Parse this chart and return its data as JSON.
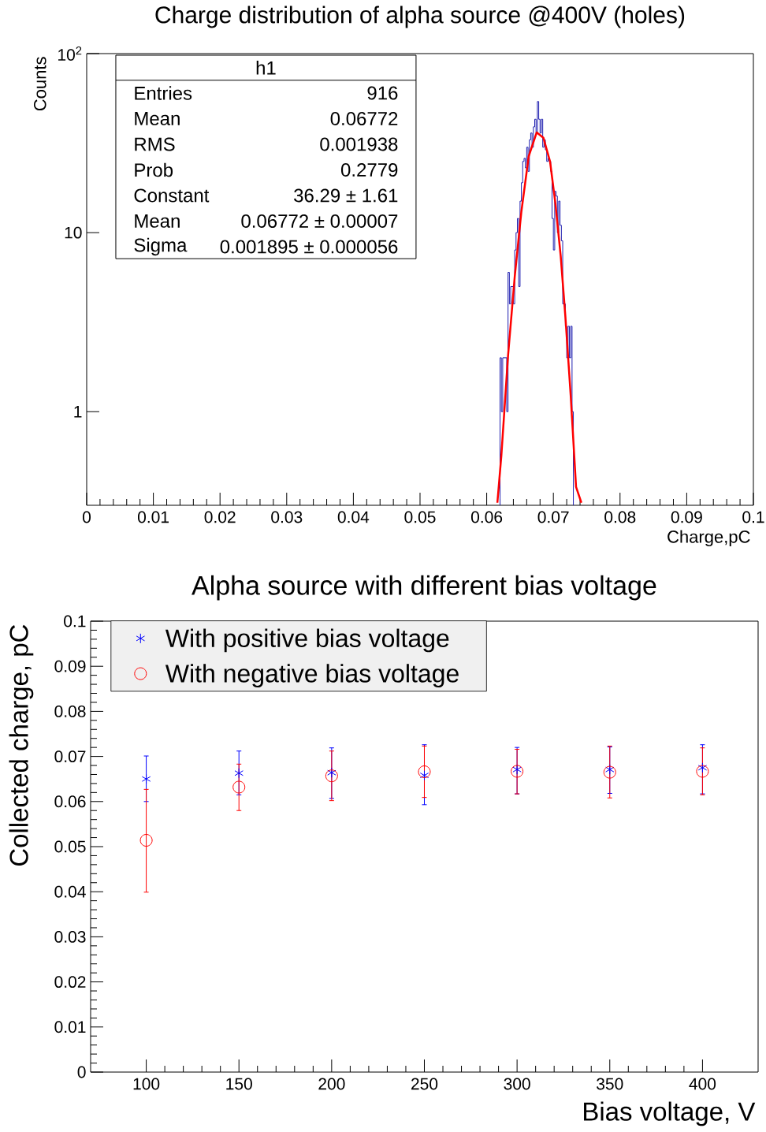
{
  "chart_data": [
    {
      "type": "histogram",
      "title": "Charge distribution of alpha source @400V (holes)",
      "xlabel": "Charge,pC",
      "ylabel": "Counts",
      "log": "y",
      "xlim": [
        0,
        0.1
      ],
      "ylim": [
        0.3,
        100
      ],
      "xticks": [
        0,
        0.01,
        0.02,
        0.03,
        0.04,
        0.05,
        0.06,
        0.07,
        0.08,
        0.09,
        0.1
      ],
      "yticks": [
        1,
        10,
        {
          "value": 100,
          "label": "10$^{2}$"
        }
      ],
      "annotations": [
        "h1",
        "Entries",
        "916",
        "Mean",
        "0.06772",
        "RMS",
        "0.001938",
        "Prob",
        "0.2779",
        "Constant",
        "36.29 ± 1.61",
        "Mean",
        "0.06772 ± 0.00007",
        "Sigma",
        "0.001895 ± 0.000056"
      ],
      "series": [
        {
          "type": "histogram",
          "color": "#1f1fb0",
          "bins": [
            0.062,
            0.0622,
            0.0624,
            0.0626,
            0.0628,
            0.063,
            0.0632,
            0.0634,
            0.0636,
            0.0638,
            0.064,
            0.0642,
            0.0644,
            0.0646,
            0.0648,
            0.065,
            0.0652,
            0.0654,
            0.0656,
            0.0658,
            0.066,
            0.0662,
            0.0664,
            0.0666,
            0.0668,
            0.067,
            0.0672,
            0.0674,
            0.0676,
            0.0678,
            0.068,
            0.0682,
            0.0684,
            0.0686,
            0.0688,
            0.069,
            0.0692,
            0.0694,
            0.0696,
            0.0698,
            0.07,
            0.0702,
            0.0704,
            0.0706,
            0.0708,
            0.071,
            0.0712,
            0.0714,
            0.0716,
            0.0718,
            0.072,
            0.0722,
            0.0724,
            0.0726,
            0.0728,
            0.073
          ],
          "values": [
            2,
            1,
            2,
            2,
            2,
            1,
            6,
            4,
            5,
            5,
            4,
            8,
            10,
            12,
            5,
            15,
            19,
            25,
            26,
            23,
            30,
            22,
            33,
            36,
            30,
            39,
            43,
            36,
            54,
            43,
            36,
            43,
            30,
            33,
            29,
            25,
            26,
            25,
            22,
            12,
            8,
            17,
            16,
            10,
            15,
            11,
            9,
            4,
            4,
            3,
            2,
            3,
            2,
            3,
            1
          ]
        },
        {
          "type": "line",
          "color": "#ff0000",
          "x": [
            0.0616,
            0.0622,
            0.0632,
            0.0642,
            0.0652,
            0.0663,
            0.0675,
            0.0685,
            0.0695,
            0.0703,
            0.0711,
            0.0718,
            0.0726,
            0.0734,
            0.0742
          ],
          "values": [
            0.31,
            0.57,
            2.05,
            5.65,
            13.1,
            26.7,
            36.3,
            33.9,
            25,
            14.6,
            7.4,
            3.4,
            1.23,
            0.38,
            0.31
          ]
        }
      ]
    },
    {
      "type": "scatter",
      "title": "Alpha source with different bias voltage",
      "xlabel": "Bias voltage, V",
      "ylabel": "Collected charge, pC",
      "legend": "top left",
      "xlim": [
        70,
        430
      ],
      "ylim": [
        0,
        0.1
      ],
      "xticks": [
        100,
        150,
        200,
        250,
        300,
        350,
        400
      ],
      "yticks": [
        0,
        0.01,
        0.02,
        0.03,
        0.04,
        0.05,
        0.06,
        0.07,
        0.08,
        0.09,
        0.1
      ],
      "x": [
        100,
        150,
        200,
        250,
        300,
        350,
        400
      ],
      "series": [
        {
          "name": "With positive bias voltage",
          "color": "#0000ff",
          "marker": "cross",
          "values": [
            0.065,
            0.0663,
            0.0664,
            0.0658,
            0.0671,
            0.0671,
            0.0675
          ],
          "errors": [
            [
              0.06,
              0.0701
            ],
            [
              0.0615,
              0.0712
            ],
            [
              0.0607,
              0.0719
            ],
            [
              0.0593,
              0.0726
            ],
            [
              0.0617,
              0.072
            ],
            [
              0.0618,
              0.0721
            ],
            [
              0.0617,
              0.0726
            ]
          ]
        },
        {
          "name": "With negative bias voltage",
          "color": "#ff0000",
          "marker": "circle",
          "values": [
            0.0514,
            0.0632,
            0.0657,
            0.0666,
            0.0667,
            0.0665,
            0.0667
          ],
          "errors": [
            [
              0.0399,
              0.0627
            ],
            [
              0.058,
              0.0683
            ],
            [
              0.0602,
              0.0712
            ],
            [
              0.0609,
              0.0723
            ],
            [
              0.0617,
              0.0716
            ],
            [
              0.0608,
              0.0723
            ],
            [
              0.0615,
              0.0719
            ]
          ]
        }
      ]
    }
  ]
}
